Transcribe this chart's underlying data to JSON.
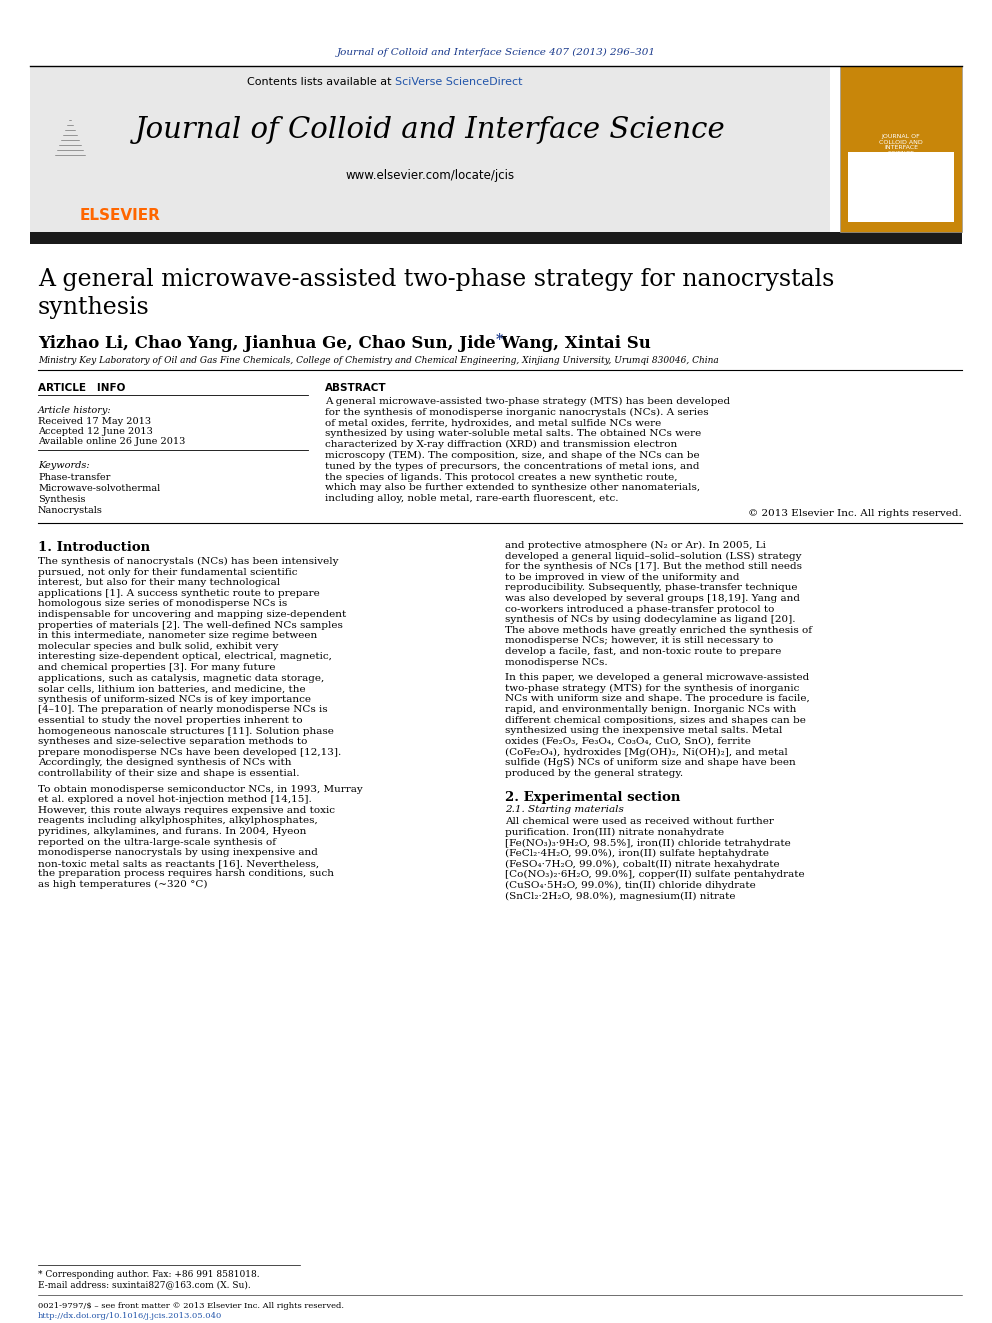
{
  "journal_ref": "Journal of Colloid and Interface Science 407 (2013) 296–301",
  "journal_name": "Journal of Colloid and Interface Science",
  "website": "www.elsevier.com/locate/jcis",
  "elsevier_color": "#FF6600",
  "link_color": "#1a3a8c",
  "link_color2": "#2255aa",
  "title": "A general microwave-assisted two-phase strategy for nanocrystals\nsynthesis",
  "authors": "Yizhao Li, Chao Yang, Jianhua Ge, Chao Sun, Jide Wang, Xintai Su",
  "affiliation": "Ministry Key Laboratory of Oil and Gas Fine Chemicals, College of Chemistry and Chemical Engineering, Xinjiang University, Urumqi 830046, China",
  "article_info_label": "ARTICLE   INFO",
  "abstract_label": "ABSTRACT",
  "article_history_label": "Article history:",
  "received": "Received 17 May 2013",
  "accepted": "Accepted 12 June 2013",
  "available": "Available online 26 June 2013",
  "keywords_label": "Keywords:",
  "keywords": [
    "Phase-transfer",
    "Microwave-solvothermal",
    "Synthesis",
    "Nanocrystals"
  ],
  "abstract_text": "A general microwave-assisted two-phase strategy (MTS) has been developed for the synthesis of monodisperse inorganic nanocrystals (NCs). A series of metal oxides, ferrite, hydroxides, and metal sulfide NCs were synthesized by using water-soluble metal salts. The obtained NCs were characterized by X-ray diffraction (XRD) and transmission electron microscopy (TEM). The composition, size, and shape of the NCs can be tuned by the types of precursors, the concentrations of metal ions, and the species of ligands. This protocol creates a new synthetic route, which may also be further extended to synthesize other nanomaterials, including alloy, noble metal, rare-earth fluorescent, etc.",
  "copyright": "© 2013 Elsevier Inc. All rights reserved.",
  "intro_heading": "1. Introduction",
  "intro_col1_para1": "    The synthesis of nanocrystals (NCs) has been intensively pursued, not only for their fundamental scientific interest, but also for their many technological applications [1]. A success synthetic route to prepare homologous size series of monodisperse NCs is indispensable for uncovering and mapping size-dependent properties of materials [2]. The well-defined NCs samples in this intermediate, nanometer size regime between molecular species and bulk solid, exhibit very interesting size-dependent optical, electrical, magnetic, and chemical properties [3]. For many future applications, such as catalysis, magnetic data storage, solar cells, lithium ion batteries, and medicine, the synthesis of uniform-sized NCs is of key importance [4–10]. The preparation of nearly monodisperse NCs is essential to study the novel properties inherent to homogeneous nanoscale structures [11]. Solution phase syntheses and size-selective separation methods to prepare monodisperse NCs have been developed [12,13]. Accordingly, the designed synthesis of NCs with controllability of their size and shape is essential.",
  "intro_col1_para2": "    To obtain monodisperse semiconductor NCs, in 1993, Murray et al. explored a novel hot-injection method [14,15]. However, this route always requires expensive and toxic reagents including alkylphosphites, alkylphosphates, pyridines, alkylamines, and furans. In 2004, Hyeon reported on the ultra-large-scale synthesis of monodisperse nanocrystals by using inexpensive and non-toxic metal salts as reactants [16]. Nevertheless, the preparation process requires harsh conditions, such as high temperatures (~320 °C)",
  "intro_col2_para1": "and protective atmosphere (N₂ or Ar). In 2005, Li developed a general liquid–solid–solution (LSS) strategy for the synthesis of NCs [17]. But the method still needs to be improved in view of the uniformity and reproducibility. Subsequently, phase-transfer technique was also developed by several groups [18,19]. Yang and co-workers introduced a phase-transfer protocol to synthesis of NCs by using dodecylamine as ligand [20]. The above methods have greatly enriched the synthesis of monodisperse NCs; however, it is still necessary to develop a facile, fast, and non-toxic route to prepare monodisperse NCs.",
  "intro_col2_para2": "    In this paper, we developed a general microwave-assisted two-phase strategy (MTS) for the synthesis of inorganic NCs with uniform size and shape. The procedure is facile, rapid, and environmentally benign. Inorganic NCs with different chemical compositions, sizes and shapes can be synthesized using the inexpensive metal salts. Metal oxides (Fe₂O₃, Fe₃O₄, Co₃O₄, CuO, SnO), ferrite (CoFe₂O₄), hydroxides [Mg(OH)₂, Ni(OH)₂], and metal sulfide (HgS) NCs of uniform size and shape have been produced by the general strategy.",
  "section2_heading": "2. Experimental section",
  "section21_heading": "2.1. Starting materials",
  "section21_text": "    All chemical were used as received without further purification. Iron(III) nitrate nonahydrate [Fe(NO₃)₃·9H₂O, 98.5%], iron(II) chloride tetrahydrate (FeCl₂·4H₂O, 99.0%), iron(II) sulfate heptahydrate (FeSO₄·7H₂O, 99.0%), cobalt(II) nitrate hexahydrate [Co(NO₃)₂·6H₂O, 99.0%], copper(II) sulfate pentahydrate (CuSO₄·5H₂O, 99.0%), tin(II) chloride dihydrate (SnCl₂·2H₂O, 98.0%), magnesium(II) nitrate",
  "footnote_star": "* Corresponding author. Fax: +86 991 8581018.",
  "footnote_email": "E-mail address: suxintai827@163.com (X. Su).",
  "footer_issn": "0021-9797/$ – see front matter © 2013 Elsevier Inc. All rights reserved.",
  "footer_doi": "http://dx.doi.org/10.1016/j.jcis.2013.05.040",
  "bg_header_color": "#E8E8E8",
  "black_bar_color": "#1a1a1a",
  "text_color": "#000000"
}
